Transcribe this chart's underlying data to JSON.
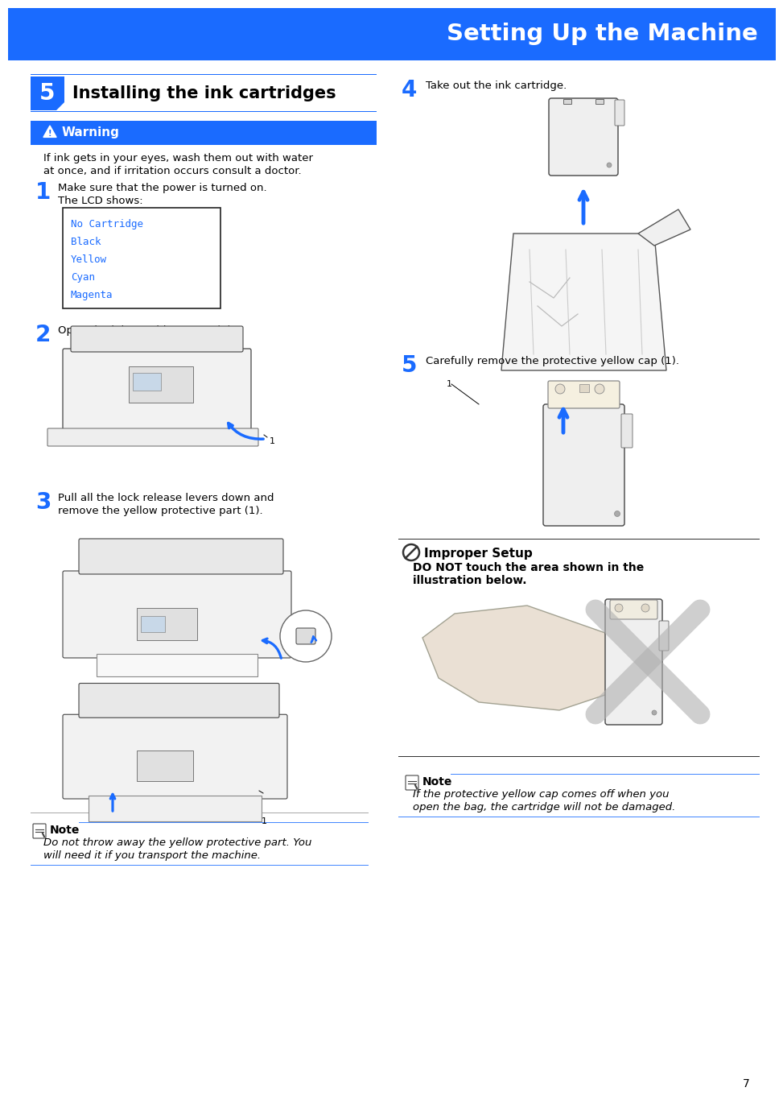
{
  "page_bg": "#ffffff",
  "header_bg": "#1a6bff",
  "header_text": "Setting Up the Machine",
  "header_text_color": "#ffffff",
  "section_num": "5",
  "section_num_bg": "#1a6bff",
  "section_title": "Installing the ink cartridges",
  "warning_bg": "#1a6bff",
  "warning_text_color": "#ffffff",
  "warning_title": "Warning",
  "warning_body1": "If ink gets in your eyes, wash them out with water",
  "warning_body2": "at once, and if irritation occurs consult a doctor.",
  "step1_num": "1",
  "step1_line1": "Make sure that the power is turned on.",
  "step1_line2": "The LCD shows:",
  "lcd_lines": [
    "No Cartridge",
    "Black",
    "Yellow",
    "Cyan",
    "Magenta"
  ],
  "lcd_text_color": "#1a6bff",
  "lcd_border": "#333333",
  "step2_num": "2",
  "step2_text": "Open the ink cartridge cover (1).",
  "step3_num": "3",
  "step3_line1": "Pull all the lock release levers down and",
  "step3_line2": "remove the yellow protective part (1).",
  "note1_title": "Note",
  "note1_line1": "Do not throw away the yellow protective part. You",
  "note1_line2": "will need it if you transport the machine.",
  "step4_num": "4",
  "step4_text": "Take out the ink cartridge.",
  "step5_num": "5",
  "step5_text": "Carefully remove the protective yellow cap (1).",
  "improper_title": "Improper Setup",
  "improper_line1": "DO NOT touch the area shown in the",
  "improper_line2": "illustration below.",
  "note2_title": "Note",
  "note2_line1": "If the protective yellow cap comes off when you",
  "note2_line2": "open the bag, the cartridge will not be damaged.",
  "page_num": "7",
  "blue": "#1a6bff",
  "black": "#000000",
  "gray_line": "#aaaaaa",
  "blue_line": "#4488ff"
}
